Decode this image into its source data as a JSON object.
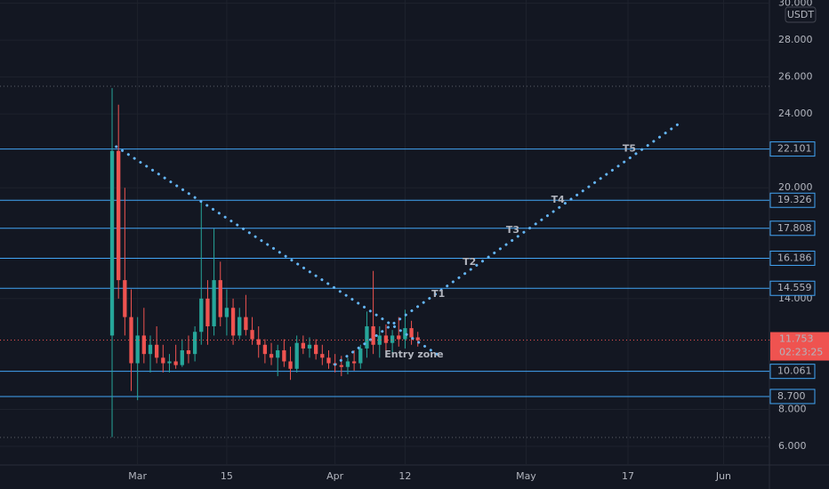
{
  "chart_data": {
    "type": "candlestick",
    "currency": "USDT",
    "x": [
      -4,
      -3,
      -2,
      -1,
      0,
      1,
      2,
      3,
      4,
      5,
      6,
      7,
      8,
      9,
      10,
      11,
      12,
      13,
      14,
      15,
      16,
      17,
      18,
      19,
      20,
      21,
      22,
      23,
      24,
      25,
      26,
      27,
      28,
      29,
      30,
      31,
      32,
      33,
      34,
      35,
      36,
      37,
      38,
      39,
      40,
      41,
      42,
      43,
      44
    ],
    "open": [
      12,
      22,
      15,
      13,
      10.5,
      12,
      11,
      11.5,
      10.8,
      10.5,
      10.6,
      10.4,
      11.2,
      11,
      12.2,
      14,
      12.5,
      15,
      13,
      13.5,
      12,
      13,
      12.3,
      11.8,
      11.5,
      11,
      10.8,
      11.2,
      10.6,
      10.2,
      11.6,
      11.3,
      11.5,
      11,
      10.8,
      10.5,
      10.4,
      10.3,
      10.6,
      10.5,
      11.3,
      12.5,
      11.5,
      12,
      11.6,
      12,
      11.8,
      12.4,
      11.9
    ],
    "high": [
      25.4,
      24.5,
      20,
      14.5,
      13,
      13.5,
      12,
      12.5,
      11.5,
      11,
      11.5,
      11.8,
      12,
      12.5,
      19.3,
      15,
      17.8,
      16,
      14.5,
      14,
      13.5,
      14.2,
      13,
      12.5,
      11.8,
      11.6,
      11.5,
      11.8,
      11.4,
      12,
      12,
      11.9,
      11.8,
      11.5,
      11.2,
      11,
      10.9,
      10.8,
      11.2,
      11.5,
      13.3,
      15.5,
      12.5,
      12.6,
      12.3,
      13,
      13.4,
      12.8,
      12.2
    ],
    "low": [
      6.5,
      14,
      12,
      9,
      8.5,
      10.5,
      10,
      10.5,
      10,
      10,
      10.2,
      10.3,
      10.5,
      10.6,
      11.5,
      11.5,
      12,
      12.5,
      12,
      11.5,
      11.8,
      12,
      11.5,
      10.8,
      10.5,
      10.4,
      9.8,
      10.3,
      9.6,
      10,
      11,
      10.8,
      10.7,
      10.4,
      10.2,
      10,
      9.8,
      9.9,
      10.1,
      10.2,
      10.8,
      11,
      10.8,
      11.2,
      11,
      11.4,
      11.3,
      11.5,
      11.4
    ],
    "close": [
      22,
      15,
      13,
      10.5,
      12,
      11,
      11.5,
      10.8,
      10.5,
      10.6,
      10.4,
      11.2,
      11,
      12.2,
      14,
      12.5,
      15,
      13,
      13.5,
      12,
      13,
      12.3,
      11.8,
      11.5,
      11,
      10.8,
      11.2,
      10.6,
      10.2,
      11.6,
      11.3,
      11.5,
      11,
      10.8,
      10.5,
      10.4,
      10.3,
      10.6,
      10.5,
      11.3,
      12.5,
      11.5,
      12,
      11.6,
      12,
      11.8,
      12.4,
      11.9,
      11.753
    ],
    "up_color": "#26a69a",
    "down_color": "#ef5350",
    "xlim": [
      -21.6,
      99.2
    ],
    "xticks": [
      {
        "value": 0,
        "label": "Mar"
      },
      {
        "value": 14,
        "label": "15"
      },
      {
        "value": 31,
        "label": "Apr"
      },
      {
        "value": 42,
        "label": "12"
      },
      {
        "value": 61,
        "label": "May"
      },
      {
        "value": 77,
        "label": "17"
      },
      {
        "value": 92,
        "label": "Jun"
      }
    ],
    "ylim": [
      4.99,
      30.17
    ],
    "yticks": [
      {
        "value": 6,
        "label": "6.000"
      },
      {
        "value": 8,
        "label": "8.000"
      },
      {
        "value": 14,
        "label": "14.000"
      },
      {
        "value": 20,
        "label": "20.000"
      },
      {
        "value": 24,
        "label": "24.000"
      },
      {
        "value": 26,
        "label": "26.000"
      },
      {
        "value": 28,
        "label": "28.000"
      },
      {
        "value": 30,
        "label": "30.000"
      }
    ],
    "grid": true,
    "levels": [
      {
        "value": 22.101,
        "label": "22.101"
      },
      {
        "value": 19.326,
        "label": "19.326"
      },
      {
        "value": 17.808,
        "label": "17.808"
      },
      {
        "value": 16.186,
        "label": "16.186"
      },
      {
        "value": 14.559,
        "label": "14.559"
      },
      {
        "value": 10.061,
        "label": "10.061"
      },
      {
        "value": 8.7,
        "label": "8.700"
      }
    ],
    "level_color": "#42a5f5",
    "range_lines": [
      25.5,
      6.48
    ],
    "last_price": {
      "value": 11.753,
      "label": "11.753"
    },
    "countdown": "02:23:25",
    "trendlines": [
      {
        "x": [
          -3.35,
          47.6
        ],
        "y": [
          22.23,
          10.86
        ]
      },
      {
        "x": [
          31.0,
          84.8
        ],
        "y": [
          10.43,
          23.43
        ]
      }
    ],
    "annotations": [
      {
        "text": "T1",
        "x": 47.2,
        "y": 14.23
      },
      {
        "text": "T2",
        "x": 52.1,
        "y": 15.96
      },
      {
        "text": "T3",
        "x": 58.9,
        "y": 17.7
      },
      {
        "text": "T4",
        "x": 66.0,
        "y": 19.33
      },
      {
        "text": "T5",
        "x": 77.2,
        "y": 22.1
      },
      {
        "text": "Entry zone",
        "x": 43.4,
        "y": 10.96
      }
    ]
  }
}
